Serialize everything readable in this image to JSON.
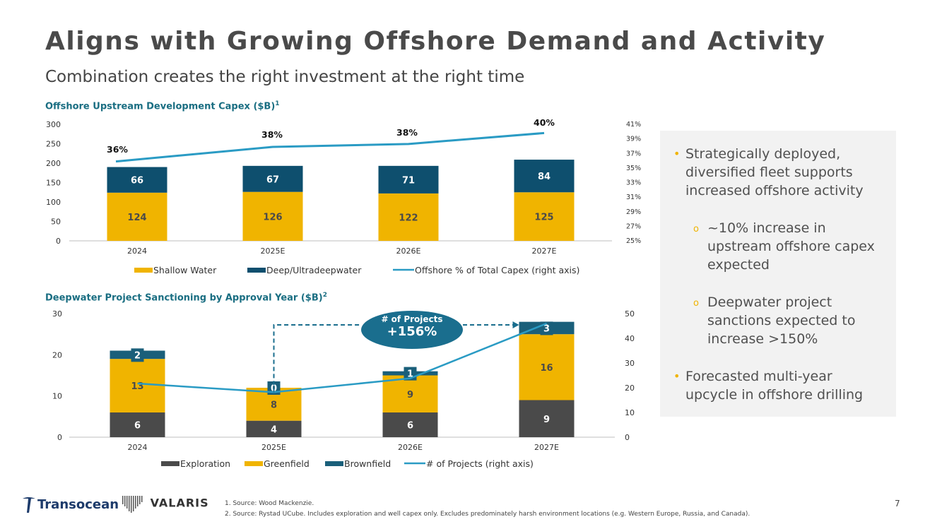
{
  "page": {
    "title": "Aligns with Growing Offshore Demand and Activity",
    "subtitle": "Combination creates the right investment at the right time",
    "page_number": "7"
  },
  "colors": {
    "shallow": "#f0b400",
    "deep": "#0e4f6e",
    "line": "#2a9bc4",
    "exploration": "#4a4a4a",
    "greenfield": "#f0b400",
    "brownfield": "#1a5f7a",
    "teal_text": "#1a6e82"
  },
  "chart_data": [
    {
      "id": "capex",
      "type": "bar",
      "title": "Offshore Upstream Development Capex ($B)",
      "title_sup": "1",
      "categories": [
        "2024",
        "2025E",
        "2026E",
        "2027E"
      ],
      "stacked": true,
      "series": [
        {
          "name": "Shallow Water",
          "values": [
            124,
            126,
            122,
            125
          ]
        },
        {
          "name": "Deep/Ultradeepwater",
          "values": [
            66,
            67,
            71,
            84
          ]
        }
      ],
      "line_series": {
        "name": "Offshore % of Total Capex (right axis)",
        "values": [
          36,
          38,
          38,
          40
        ],
        "labels": [
          "36%",
          "38%",
          "38%",
          "40%"
        ]
      },
      "ylim": [
        0,
        300
      ],
      "yticks": [
        "0",
        "50",
        "100",
        "150",
        "200",
        "250",
        "300"
      ],
      "y2lim": [
        25,
        41
      ],
      "y2ticks": [
        "25%",
        "27%",
        "29%",
        "31%",
        "33%",
        "35%",
        "37%",
        "39%",
        "41%"
      ],
      "legend": [
        "Shallow Water",
        "Deep/Ultradeepwater",
        "Offshore % of Total Capex (right axis)"
      ]
    },
    {
      "id": "sanctioning",
      "type": "bar",
      "title": "Deepwater Project Sanctioning by Approval Year ($B)",
      "title_sup": "2",
      "categories": [
        "2024",
        "2025E",
        "2026E",
        "2027E"
      ],
      "stacked": true,
      "series": [
        {
          "name": "Exploration",
          "values": [
            6,
            4,
            6,
            9
          ]
        },
        {
          "name": "Greenfield",
          "values": [
            13,
            8,
            9,
            16
          ]
        },
        {
          "name": "Brownfield",
          "values": [
            2,
            0,
            1,
            3
          ]
        }
      ],
      "line_series": {
        "name": "# of Projects (right axis)",
        "values": [
          22,
          18,
          24,
          46
        ]
      },
      "ylim": [
        0,
        30
      ],
      "yticks": [
        "0",
        "10",
        "20",
        "30"
      ],
      "y2lim": [
        0,
        50
      ],
      "y2ticks": [
        "0",
        "10",
        "20",
        "30",
        "40",
        "50"
      ],
      "legend": [
        "Exploration",
        "Greenfield",
        "Brownfield",
        "# of Projects (right axis)"
      ],
      "callout": {
        "line1": "# of Projects",
        "line2": "+156%"
      }
    }
  ],
  "callout": {
    "bullets": [
      {
        "level": 1,
        "text": [
          "Strategically deployed,",
          "diversified fleet supports",
          "increased offshore activity"
        ]
      },
      {
        "level": 2,
        "text": [
          "~10% increase in",
          "upstream offshore capex",
          "expected"
        ]
      },
      {
        "level": 2,
        "text": [
          "Deepwater project",
          "sanctions expected to",
          "increase >150%"
        ]
      },
      {
        "level": 1,
        "text": [
          "Forecasted multi-year",
          "upcycle in offshore drilling"
        ]
      }
    ]
  },
  "footer": {
    "logo_transocean": "Transocean",
    "logo_valaris": "VALARIS",
    "footnote1": "1.   Source: Wood Mackenzie.",
    "footnote2": "2.   Source: Rystad UCube. Includes exploration and well capex only. Excludes predominately harsh environment locations (e.g. Western Europe, Russia, and Canada)."
  }
}
